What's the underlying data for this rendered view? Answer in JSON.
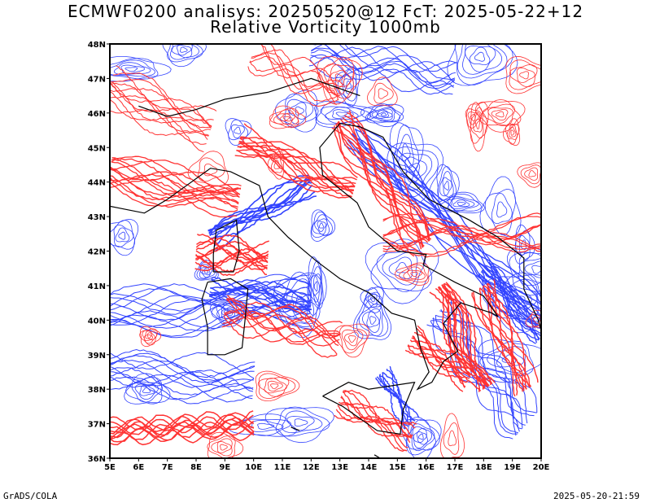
{
  "title_line1": "ECMWF0200 analisys: 20250520@12 FcT: 2025-05-22+12",
  "title_line2": "Relative Vorticity 1000mb",
  "footer_left": "GrADS/COLA",
  "footer_right": "2025-05-20-21:59",
  "x_tick_labels": [
    "5E",
    "6E",
    "7E",
    "8E",
    "9E",
    "10E",
    "11E",
    "12E",
    "13E",
    "14E",
    "15E",
    "16E",
    "17E",
    "18E",
    "19E",
    "20E"
  ],
  "y_tick_labels": [
    "36N",
    "37N",
    "38N",
    "39N",
    "40N",
    "41N",
    "42N",
    "43N",
    "44N",
    "45N",
    "46N",
    "47N",
    "48N"
  ],
  "colors": {
    "positive_vorticity": "#ff3333",
    "negative_vorticity": "#3344ff",
    "coastline": "#000000",
    "frame": "#000000"
  }
}
